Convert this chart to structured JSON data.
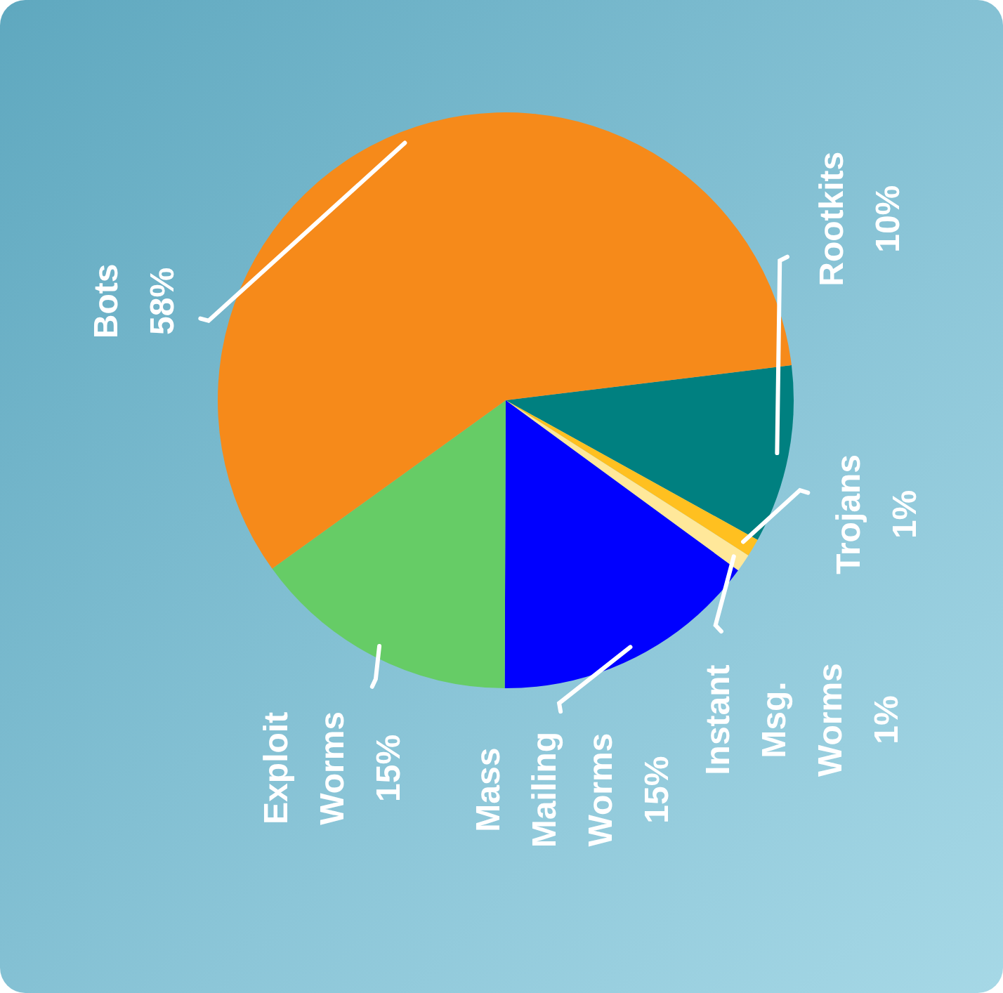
{
  "chart_data": {
    "type": "pie",
    "categories": [
      "Rootkits",
      "Trojans",
      "Instant Msg. Worms",
      "Mass Mailing Worms",
      "Exploit Worms",
      "Bots"
    ],
    "values": [
      10,
      1,
      1,
      15,
      15,
      58
    ],
    "value_labels": [
      "10%",
      "1%",
      "1%",
      "15%",
      "15%",
      "58%"
    ],
    "colors": [
      "#008080",
      "#ffc020",
      "#ffe89a",
      "#0000ff",
      "#66cc66",
      "#f68a1a"
    ],
    "legend": false
  }
}
